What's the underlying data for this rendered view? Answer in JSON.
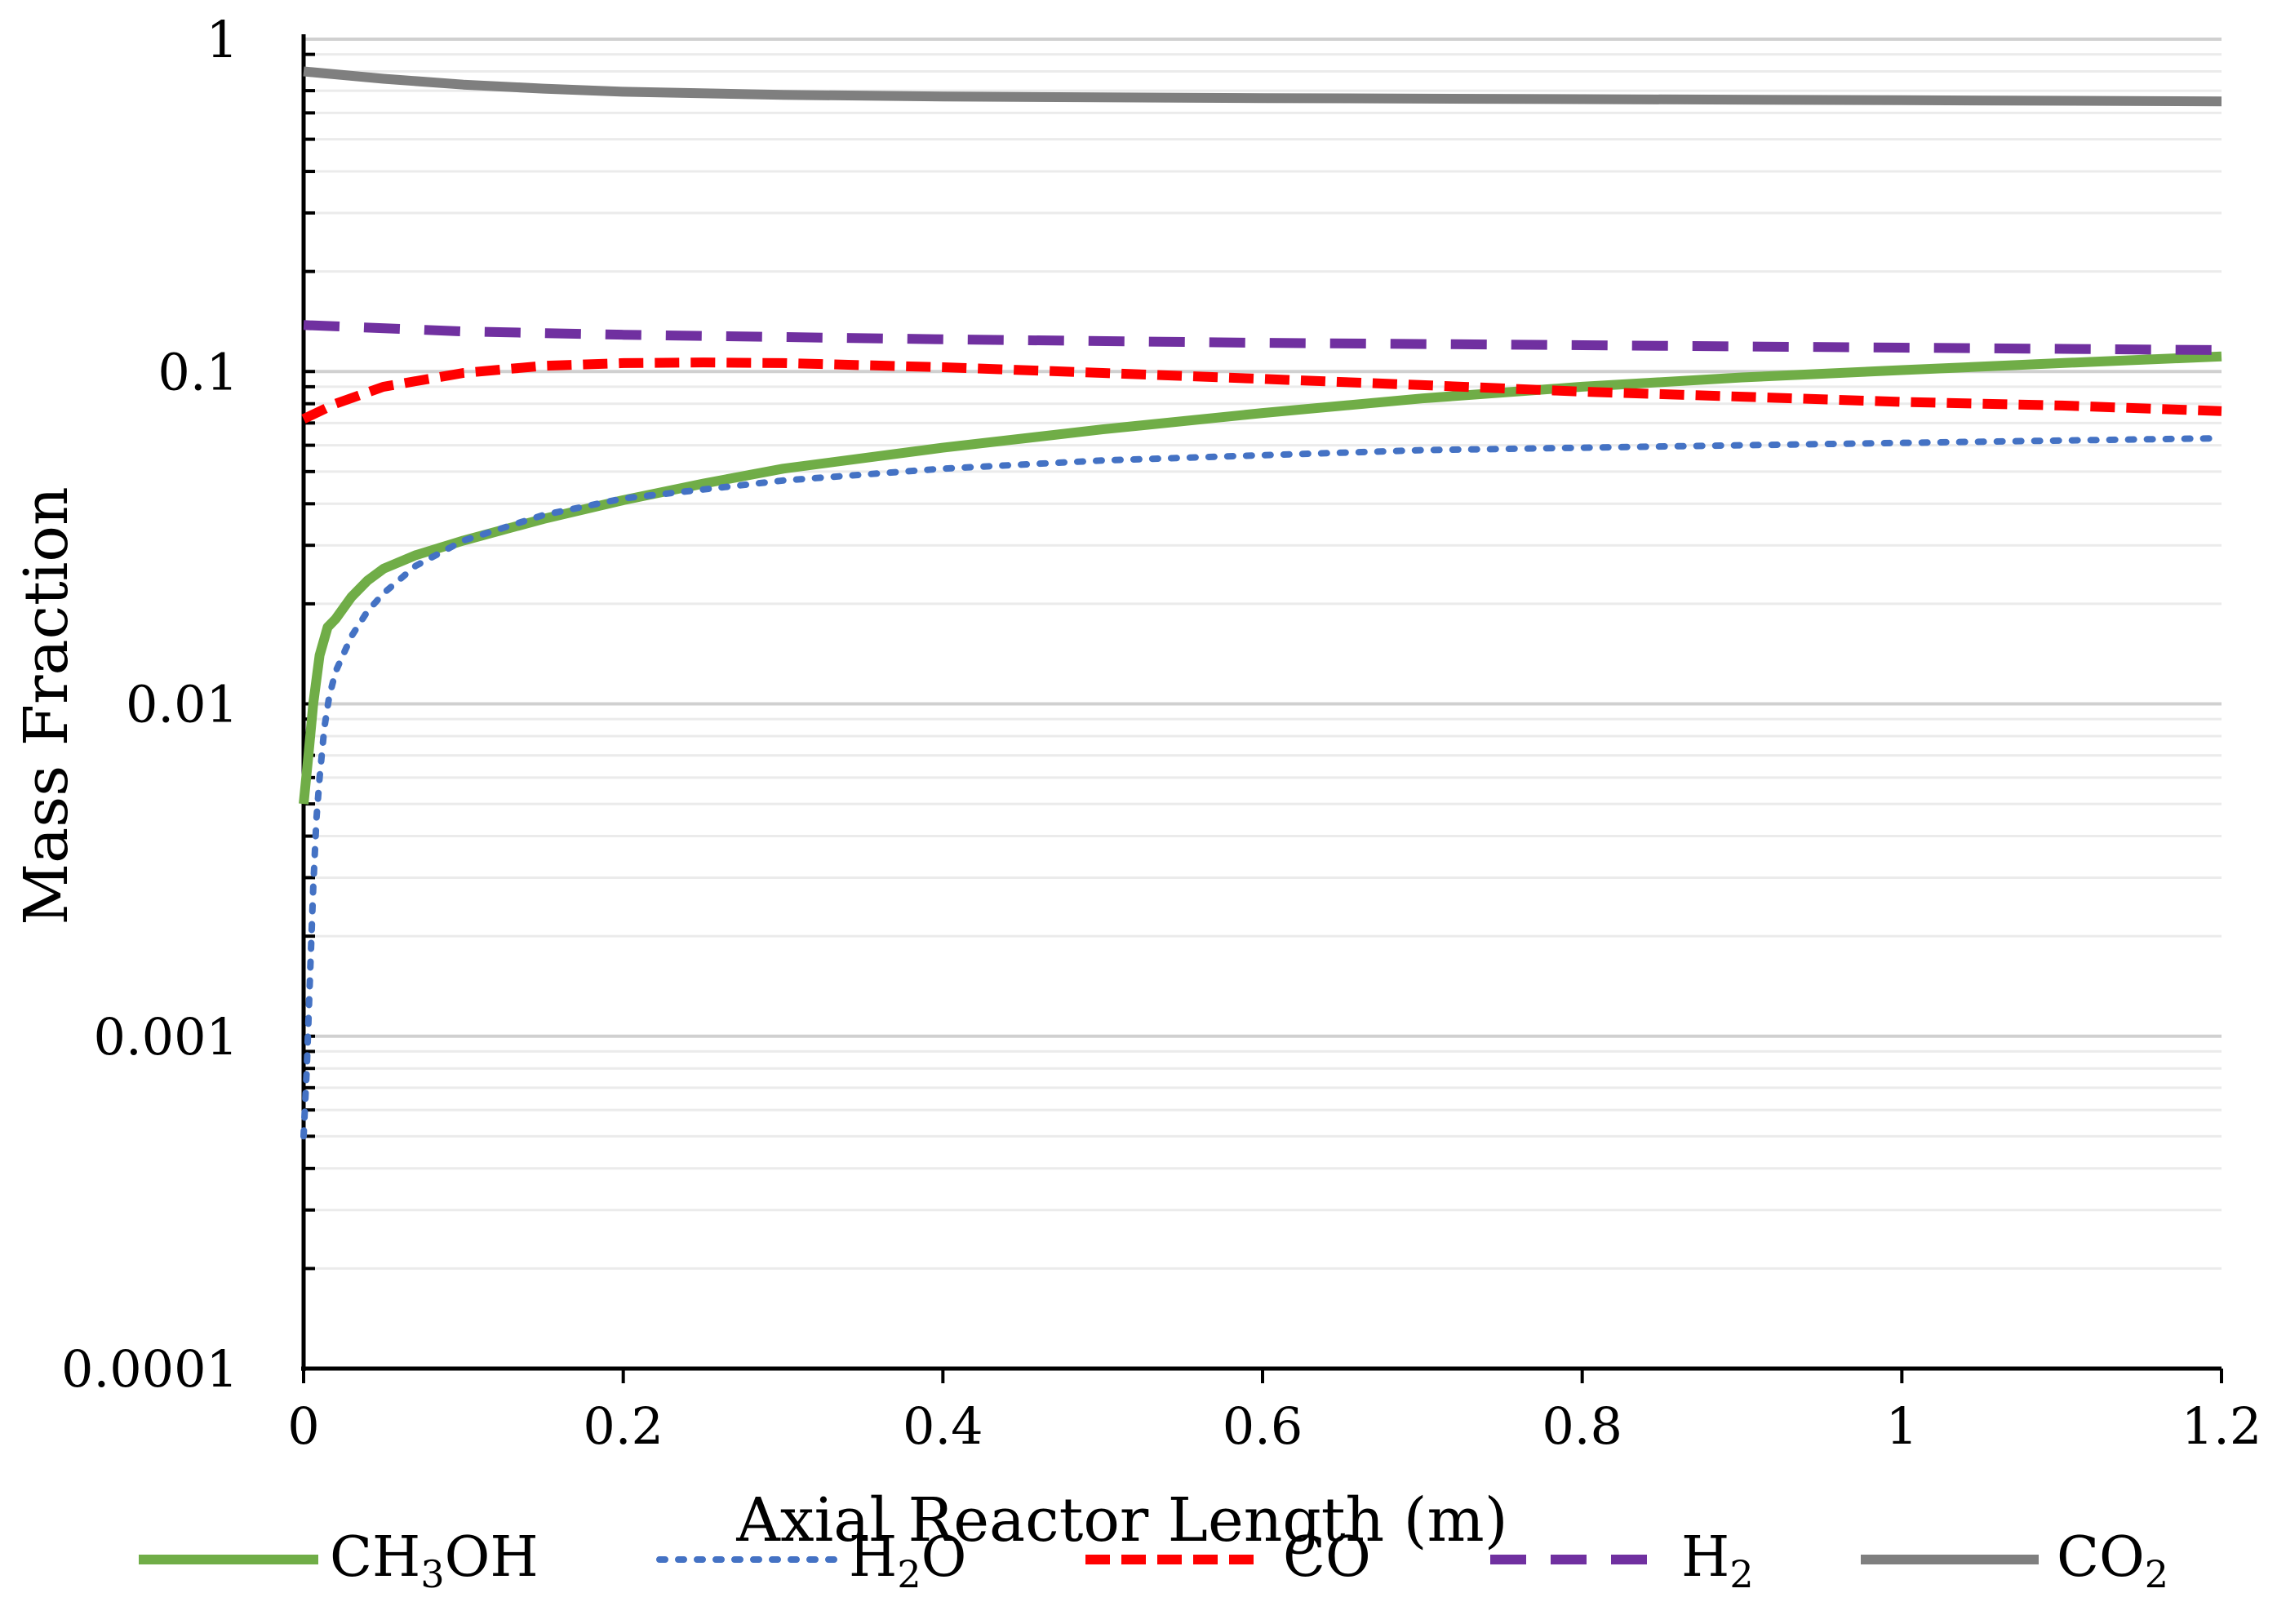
{
  "chart_data": {
    "type": "line",
    "title": "",
    "xlabel": "Axial Reactor Length (m)",
    "ylabel": "Mass Fraction",
    "xlim": [
      0,
      1.2
    ],
    "ylim": [
      0.0001,
      1
    ],
    "yscale": "log",
    "xticks": [
      "0",
      "0.2",
      "0.4",
      "0.6",
      "0.8",
      "1",
      "1.2"
    ],
    "yticks": [
      "0.0001",
      "0.001",
      "0.01",
      "0.1",
      "1"
    ],
    "grid": true,
    "legend_position": "bottom",
    "series": [
      {
        "name": "CH3OH",
        "legend": {
          "base": "CH",
          "sub": "3",
          "rest": "OH"
        },
        "color": "#70AD47",
        "dash": "solid",
        "x": [
          0,
          0.003,
          0.006,
          0.01,
          0.015,
          0.02,
          0.03,
          0.04,
          0.05,
          0.07,
          0.1,
          0.15,
          0.2,
          0.25,
          0.3,
          0.4,
          0.5,
          0.6,
          0.7,
          0.8,
          0.9,
          1.0,
          1.1,
          1.2
        ],
        "y": [
          0.005,
          0.007,
          0.01,
          0.014,
          0.017,
          0.018,
          0.021,
          0.0235,
          0.0255,
          0.028,
          0.031,
          0.036,
          0.041,
          0.046,
          0.051,
          0.059,
          0.067,
          0.075,
          0.083,
          0.09,
          0.096,
          0.101,
          0.106,
          0.111
        ]
      },
      {
        "name": "H2O",
        "legend": {
          "base": "H",
          "sub": "2",
          "rest": "O"
        },
        "color": "#4472C4",
        "dash": "dotted",
        "x": [
          0,
          0.002,
          0.004,
          0.006,
          0.008,
          0.01,
          0.013,
          0.016,
          0.02,
          0.03,
          0.04,
          0.05,
          0.07,
          0.1,
          0.15,
          0.2,
          0.3,
          0.4,
          0.5,
          0.6,
          0.7,
          0.8,
          0.9,
          1.0,
          1.1,
          1.2
        ],
        "y": [
          0.0005,
          0.0008,
          0.0015,
          0.0028,
          0.0045,
          0.006,
          0.0085,
          0.0105,
          0.0125,
          0.016,
          0.019,
          0.0215,
          0.026,
          0.031,
          0.037,
          0.0415,
          0.047,
          0.051,
          0.054,
          0.056,
          0.058,
          0.059,
          0.06,
          0.061,
          0.062,
          0.063
        ]
      },
      {
        "name": "CO",
        "legend": {
          "base": "CO",
          "sub": "",
          "rest": ""
        },
        "color": "#FF0000",
        "dash": "dashed",
        "x": [
          0,
          0.02,
          0.05,
          0.1,
          0.15,
          0.2,
          0.25,
          0.3,
          0.4,
          0.5,
          0.6,
          0.7,
          0.8,
          0.9,
          1.0,
          1.1,
          1.2
        ],
        "y": [
          0.072,
          0.08,
          0.09,
          0.099,
          0.104,
          0.106,
          0.1065,
          0.106,
          0.103,
          0.099,
          0.095,
          0.091,
          0.087,
          0.084,
          0.081,
          0.079,
          0.076
        ]
      },
      {
        "name": "H2",
        "legend": {
          "base": "H",
          "sub": "2",
          "rest": ""
        },
        "color": "#7030A0",
        "dash": "longdash",
        "x": [
          0,
          0.1,
          0.2,
          0.3,
          0.4,
          0.6,
          0.8,
          1.0,
          1.2
        ],
        "y": [
          0.138,
          0.132,
          0.129,
          0.127,
          0.125,
          0.122,
          0.12,
          0.118,
          0.116
        ]
      },
      {
        "name": "CO2",
        "legend": {
          "base": "CO",
          "sub": "2",
          "rest": ""
        },
        "color": "#7F7F7F",
        "dash": "solid",
        "x": [
          0,
          0.05,
          0.1,
          0.15,
          0.2,
          0.3,
          0.4,
          0.6,
          0.8,
          1.0,
          1.2
        ],
        "y": [
          0.8,
          0.76,
          0.73,
          0.71,
          0.695,
          0.68,
          0.672,
          0.665,
          0.66,
          0.655,
          0.65
        ]
      }
    ]
  }
}
